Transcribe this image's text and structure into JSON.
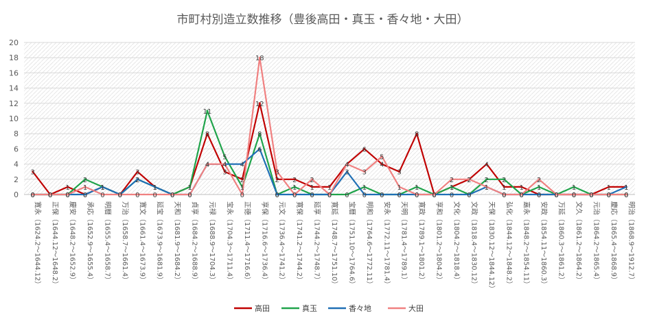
{
  "chart_data": {
    "type": "line",
    "title": "市町村別造立数推移（豊後高田・真玉・香々地・大田）",
    "xlabel": "",
    "ylabel": "",
    "ylim": [
      0,
      20
    ],
    "yticks": [
      0,
      2,
      4,
      6,
      8,
      10,
      12,
      14,
      16,
      18,
      20
    ],
    "grid": true,
    "legend_position": "bottom",
    "categories": [
      "寛永（1624.2～1644.12）",
      "正保（1644.12～1648.2）",
      "慶安（1648.2～1652.9）",
      "承応（1652.9～1655.4）",
      "明暦（1655.4～1658.7）",
      "万治（1658.7～1661.4）",
      "寛文（1661.4～1673.9）",
      "延宝（1673.9～1681.9）",
      "天和（1681.9～1684.2）",
      "貞享（1684.2～1688.9）",
      "元禄（1688.9～1704.3）",
      "宝永（1704.3～1711.4）",
      "正徳（1711.4～1716.6）",
      "享保（1716.6～1736.4）",
      "元文（1736.4～1741.2）",
      "寛保（1741.2～1744.2）",
      "延享（1744.2～1748.7）",
      "寛延（1748.7～1751.10）",
      "宝暦（1751.10～1764.6）",
      "明和（1764.6～1772.11）",
      "安永（1772.11～1781.4）",
      "天明（1781.4～1789.1）",
      "寛政（1789.1～1801.2）",
      "享和（1801.2～1804.2）",
      "文化（1804.2～1818.4）",
      "文政（1818.4～1830.12）",
      "天保（1830.12～1844.12）",
      "弘化（1844.12～1848.2）",
      "嘉永（1848.2～1854.11）",
      "安政（1854.11～1860.3）",
      "万延（1860.3～1861.2）",
      "文久（1861.2～1864.2）",
      "元治（1864.2～1865.4）",
      "慶応（1865.4～1868.9）",
      "明治（1868.9～1912.7）"
    ],
    "series": [
      {
        "name": "高田",
        "color": "#c00000",
        "values": [
          3,
          0,
          1,
          0,
          1,
          0,
          3,
          1,
          0,
          1,
          8,
          3,
          2,
          12,
          2,
          2,
          1,
          1,
          4,
          6,
          4,
          3,
          8,
          0,
          1,
          2,
          4,
          1,
          1,
          0,
          0,
          0,
          0,
          1,
          1
        ]
      },
      {
        "name": "真玉",
        "color": "#1fa34a",
        "values": [
          0,
          0,
          0,
          2,
          1,
          0,
          2,
          1,
          0,
          1,
          11,
          5,
          1,
          8,
          0,
          1,
          0,
          0,
          0,
          1,
          0,
          0,
          1,
          0,
          1,
          0,
          2,
          2,
          0,
          1,
          0,
          1,
          0,
          0,
          0
        ]
      },
      {
        "name": "香々地",
        "color": "#1f6fb5",
        "values": [
          0,
          0,
          0,
          0,
          1,
          0,
          2,
          1,
          0,
          0,
          4,
          4,
          4,
          6,
          0,
          0,
          0,
          0,
          3,
          0,
          0,
          0,
          0,
          0,
          0,
          0,
          1,
          0,
          0,
          0,
          0,
          0,
          0,
          0,
          1
        ]
      },
      {
        "name": "大田",
        "color": "#f08080",
        "values": [
          0,
          0,
          0,
          1,
          0,
          0,
          0,
          0,
          0,
          0,
          4,
          4,
          0,
          18,
          3,
          0,
          2,
          0,
          4,
          3,
          5,
          1,
          0,
          0,
          2,
          2,
          1,
          0,
          0,
          2,
          0,
          0,
          0,
          0,
          0
        ]
      }
    ]
  }
}
